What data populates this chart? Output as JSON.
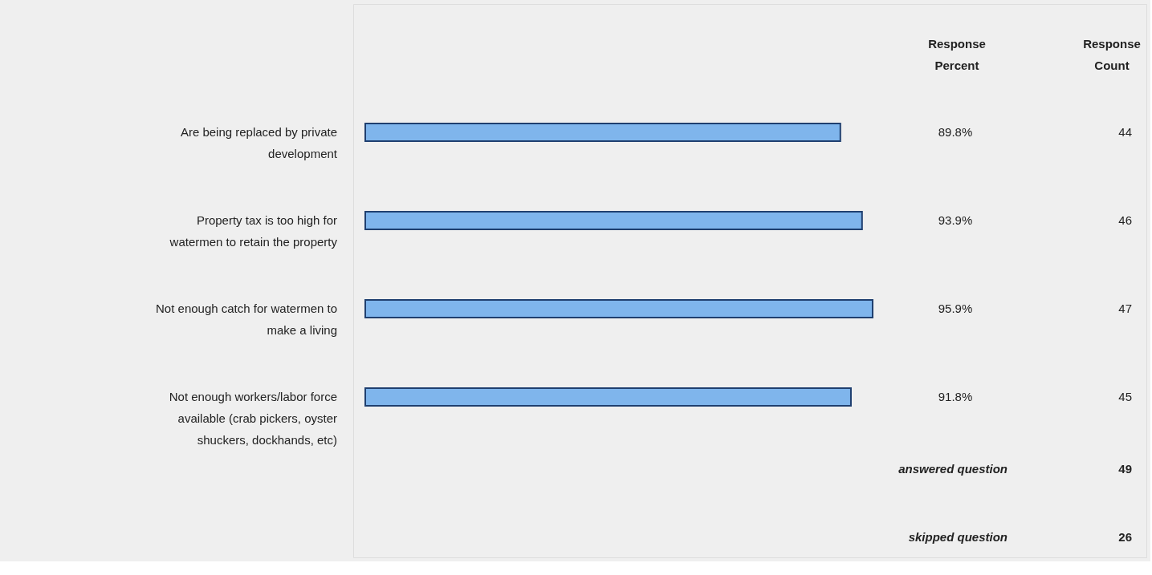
{
  "chart_data": {
    "type": "bar",
    "orientation": "horizontal",
    "categories": [
      "Are being replaced by private development",
      "Property tax is too high for watermen to retain the property",
      "Not enough catch for watermen to make a living",
      "Not enough workers/labor force available (crab pickers, oyster shuckers, dockhands, etc)"
    ],
    "values": [
      89.8,
      93.9,
      95.9,
      91.8
    ],
    "value_labels": [
      "89.8%",
      "93.9%",
      "95.9%",
      "91.8%"
    ],
    "color": "#7fb5ec",
    "annotations": [
      "Response Percent",
      "Response Count",
      "44",
      "46",
      "47",
      "45",
      "answered question",
      "49",
      "skipped question",
      "26"
    ]
  }
}
